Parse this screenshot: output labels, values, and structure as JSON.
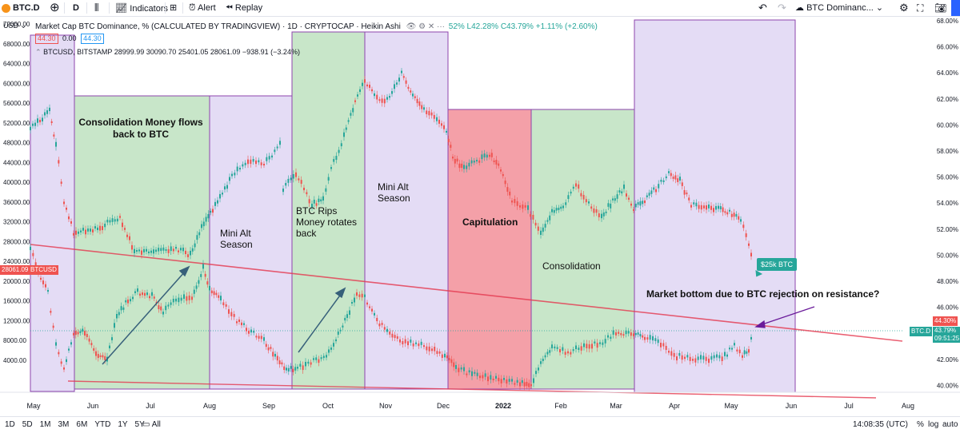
{
  "toolbar": {
    "symbol": "BTC.D",
    "interval": "D",
    "indicators": "Indicators",
    "alert": "Alert",
    "replay": "Replay",
    "layout_name": "BTC Dominanc..."
  },
  "legend": {
    "title": "Market Cap BTC Dominance, % (CALCULATED BY TRADINGVIEW) · 1D · CRYPTOCAP · Heikin Ashi",
    "ohlc": "52% L42.28% C43.79% +1.11% (+2.60%)",
    "val1": "44.30",
    "val2": "0.00",
    "val3": "44.30",
    "btc_line": "BTCUSD, BITSTAMP 28999.99 30090.70 25401.05 28061.09 −938.91 (−3.24%)"
  },
  "left_axis": [
    "72000.00",
    "68000.00",
    "64000.00",
    "60000.00",
    "56000.00",
    "52000.00",
    "48000.00",
    "44000.00",
    "40000.00",
    "36000.00",
    "32000.00",
    "28000.00",
    "24000.00",
    "20000.00",
    "16000.00",
    "12000.00",
    "8000.00",
    "4000.00"
  ],
  "left_axis_unit": "USD",
  "right_axis": [
    "68.00%",
    "66.00%",
    "64.00%",
    "62.00%",
    "60.00%",
    "58.00%",
    "56.00%",
    "54.00%",
    "52.00%",
    "50.00%",
    "48.00%",
    "46.00%",
    "44.00%",
    "42.00%",
    "40.00%"
  ],
  "x_axis": [
    "May",
    "Jun",
    "Jul",
    "Aug",
    "Sep",
    "Oct",
    "Nov",
    "Dec",
    "2022",
    "Feb",
    "Mar",
    "Apr",
    "May",
    "Jun",
    "Jul",
    "Aug"
  ],
  "price_tags": {
    "btcusd_value": "28061.09",
    "btcusd_label": "BTCUSD",
    "dom_value": "44.30%",
    "dom_label": "BTC.D",
    "dom_close": "43.79%",
    "countdown": "09:51:25"
  },
  "annotations": {
    "consolidation1": "Consolidation Money flows back to BTC",
    "mini_alt1": "Mini Alt Season",
    "btc_rips": "BTC Rips Money rotates back",
    "mini_alt2": "Mini Alt Season",
    "capitulation": "Capitulation",
    "consolidation2": "Consolidation",
    "market_bottom": "Market bottom due to BTC rejection on resistance?",
    "callout": "$25k BTC"
  },
  "bottom": {
    "ranges": [
      "1D",
      "5D",
      "1M",
      "3M",
      "6M",
      "YTD",
      "1Y",
      "5Y",
      "All"
    ],
    "time": "14:08:35 (UTC)",
    "percent": "%",
    "log": "log",
    "auto": "auto"
  },
  "colors": {
    "green_zone": "#c8e6c9",
    "purple_zone": "#e4dcf5",
    "red_zone": "#f4a0a8",
    "up": "#26a69a",
    "down": "#ef5350",
    "accent": "#2962ff"
  }
}
